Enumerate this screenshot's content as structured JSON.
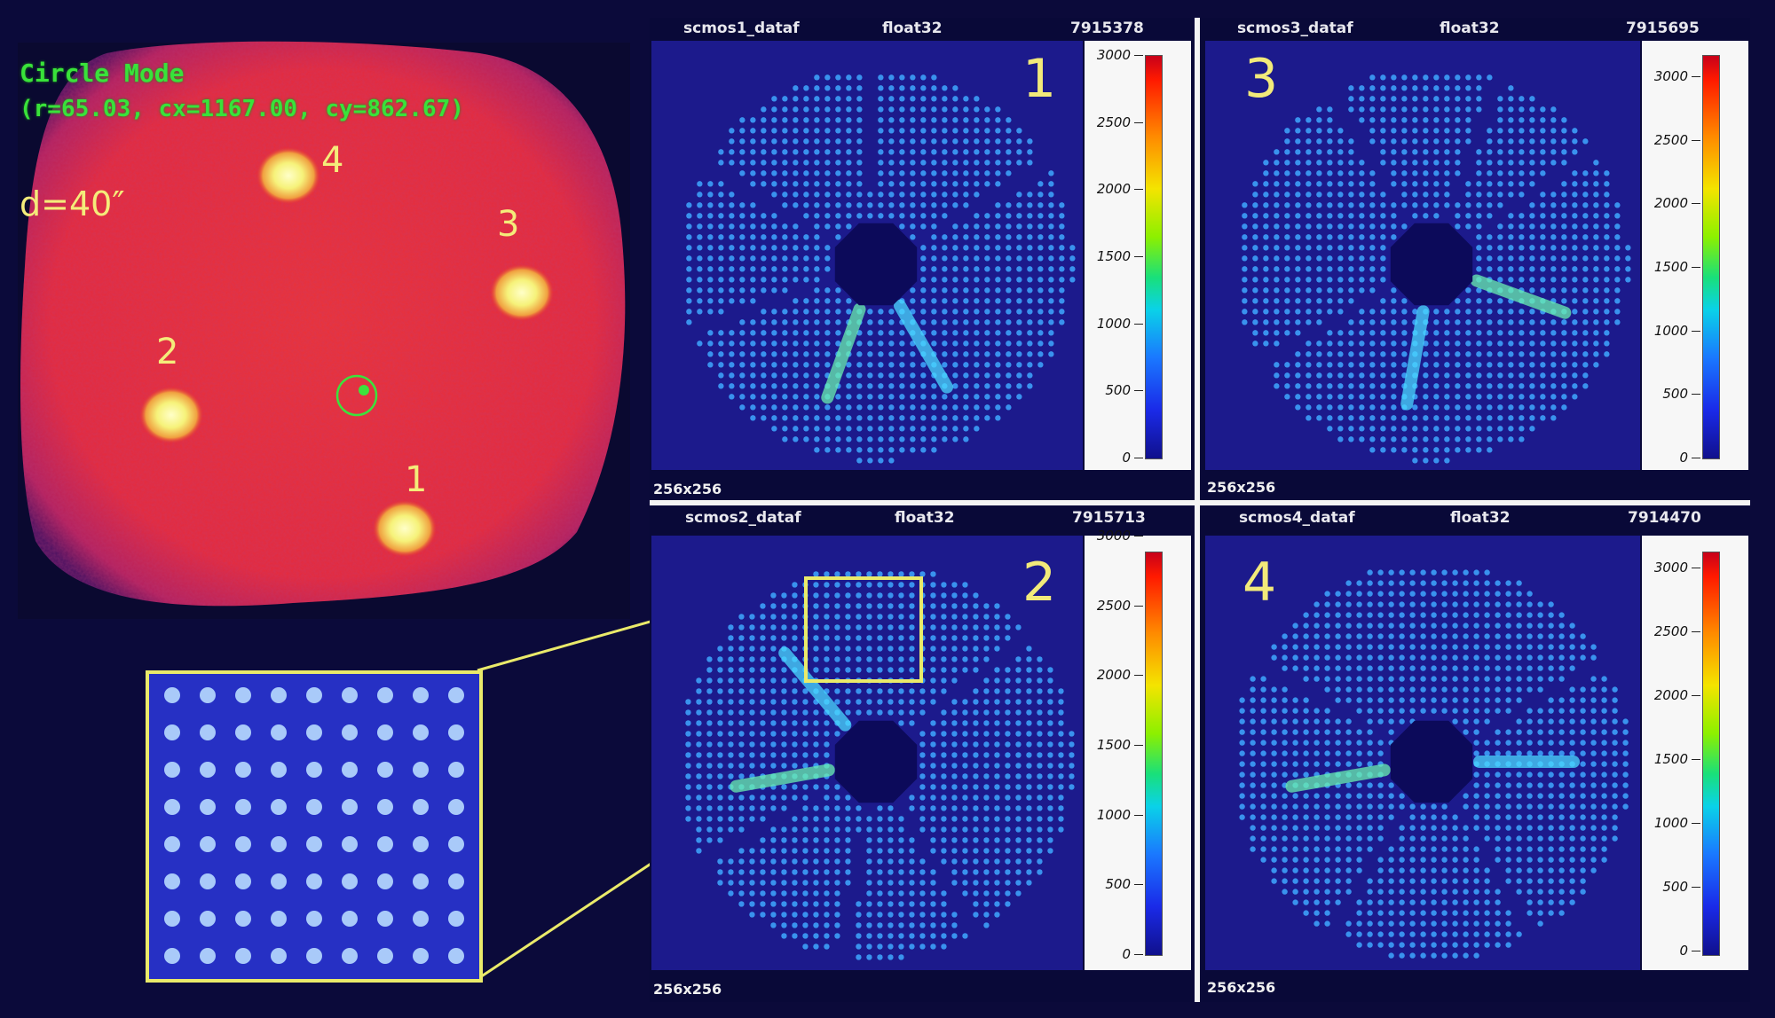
{
  "left_view": {
    "mode_title": "Circle Mode",
    "mode_params": "(r=65.03, cx=1167.00, cy=862.67)",
    "distance_label": "d=40″",
    "spot_labels": [
      "4",
      "3",
      "2",
      "1"
    ]
  },
  "panels": [
    {
      "id": "1",
      "name": "scmos1_dataf",
      "dtype": "float32",
      "count": "7915378",
      "size": "256x256",
      "number": "1"
    },
    {
      "id": "3",
      "name": "scmos3_dataf",
      "dtype": "float32",
      "count": "7915695",
      "size": "256x256",
      "number": "3"
    },
    {
      "id": "2",
      "name": "scmos2_dataf",
      "dtype": "float32",
      "count": "7915713",
      "size": "256x256",
      "number": "2"
    },
    {
      "id": "4",
      "name": "scmos4_dataf",
      "dtype": "float32",
      "count": "7914470",
      "size": "256x256",
      "number": "4"
    }
  ],
  "colorbar_ticks": [
    "3000",
    "2500",
    "2000",
    "1500",
    "1000",
    "500",
    "0"
  ],
  "colors": {
    "background": "#0b0a3a",
    "plot_bg": "#1c1a8c",
    "annotation": "#f2ea7a",
    "mode_text": "#39e23a",
    "zoom_border": "#eaea6a"
  }
}
